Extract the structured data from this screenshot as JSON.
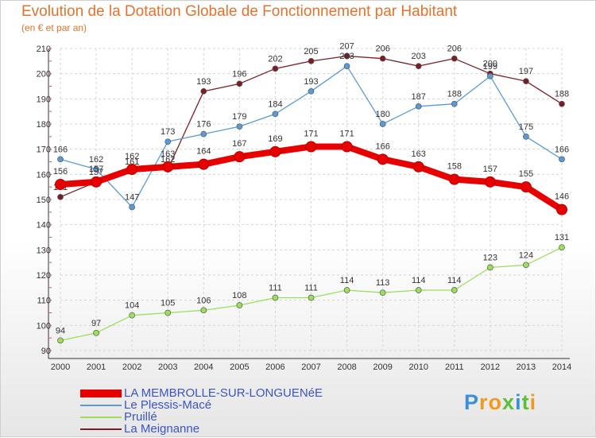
{
  "title": "Evolution de la Dotation Globale de Fonctionnement par Habitant",
  "subtitle": "(en € et par an)",
  "logo": "Proxiti",
  "chart_data": {
    "type": "line",
    "x": [
      "2000",
      "2001",
      "2002",
      "2003",
      "2004",
      "2005",
      "2006",
      "2007",
      "2008",
      "2009",
      "2010",
      "2011",
      "2012",
      "2013",
      "2014"
    ],
    "ylim": [
      90,
      210
    ],
    "yticks": [
      90,
      100,
      110,
      120,
      130,
      140,
      150,
      160,
      170,
      180,
      190,
      200,
      210
    ],
    "grid": true,
    "legend_position": "bottom-left",
    "series": [
      {
        "name": "LA MEMBROLLE-SUR-LONGUENéE",
        "color": "#e80000",
        "values": [
          156,
          157,
          162,
          163,
          164,
          167,
          169,
          171,
          171,
          166,
          163,
          158,
          157,
          155,
          146
        ]
      },
      {
        "name": "Le Plessis-Macé",
        "color": "#5b9bd5",
        "values": [
          166,
          162,
          147,
          173,
          176,
          179,
          184,
          193,
          203,
          180,
          187,
          188,
          199,
          175,
          166
        ]
      },
      {
        "name": "Pruillé",
        "color": "#9be05b",
        "values": [
          94,
          97,
          104,
          105,
          106,
          108,
          111,
          111,
          114,
          113,
          114,
          114,
          123,
          124,
          131
        ]
      },
      {
        "name": "La Meignanne",
        "color": "#7a1e26",
        "values": [
          151,
          157,
          161,
          162,
          193,
          196,
          202,
          205,
          207,
          206,
          203,
          206,
          200,
          197,
          188
        ]
      }
    ]
  }
}
